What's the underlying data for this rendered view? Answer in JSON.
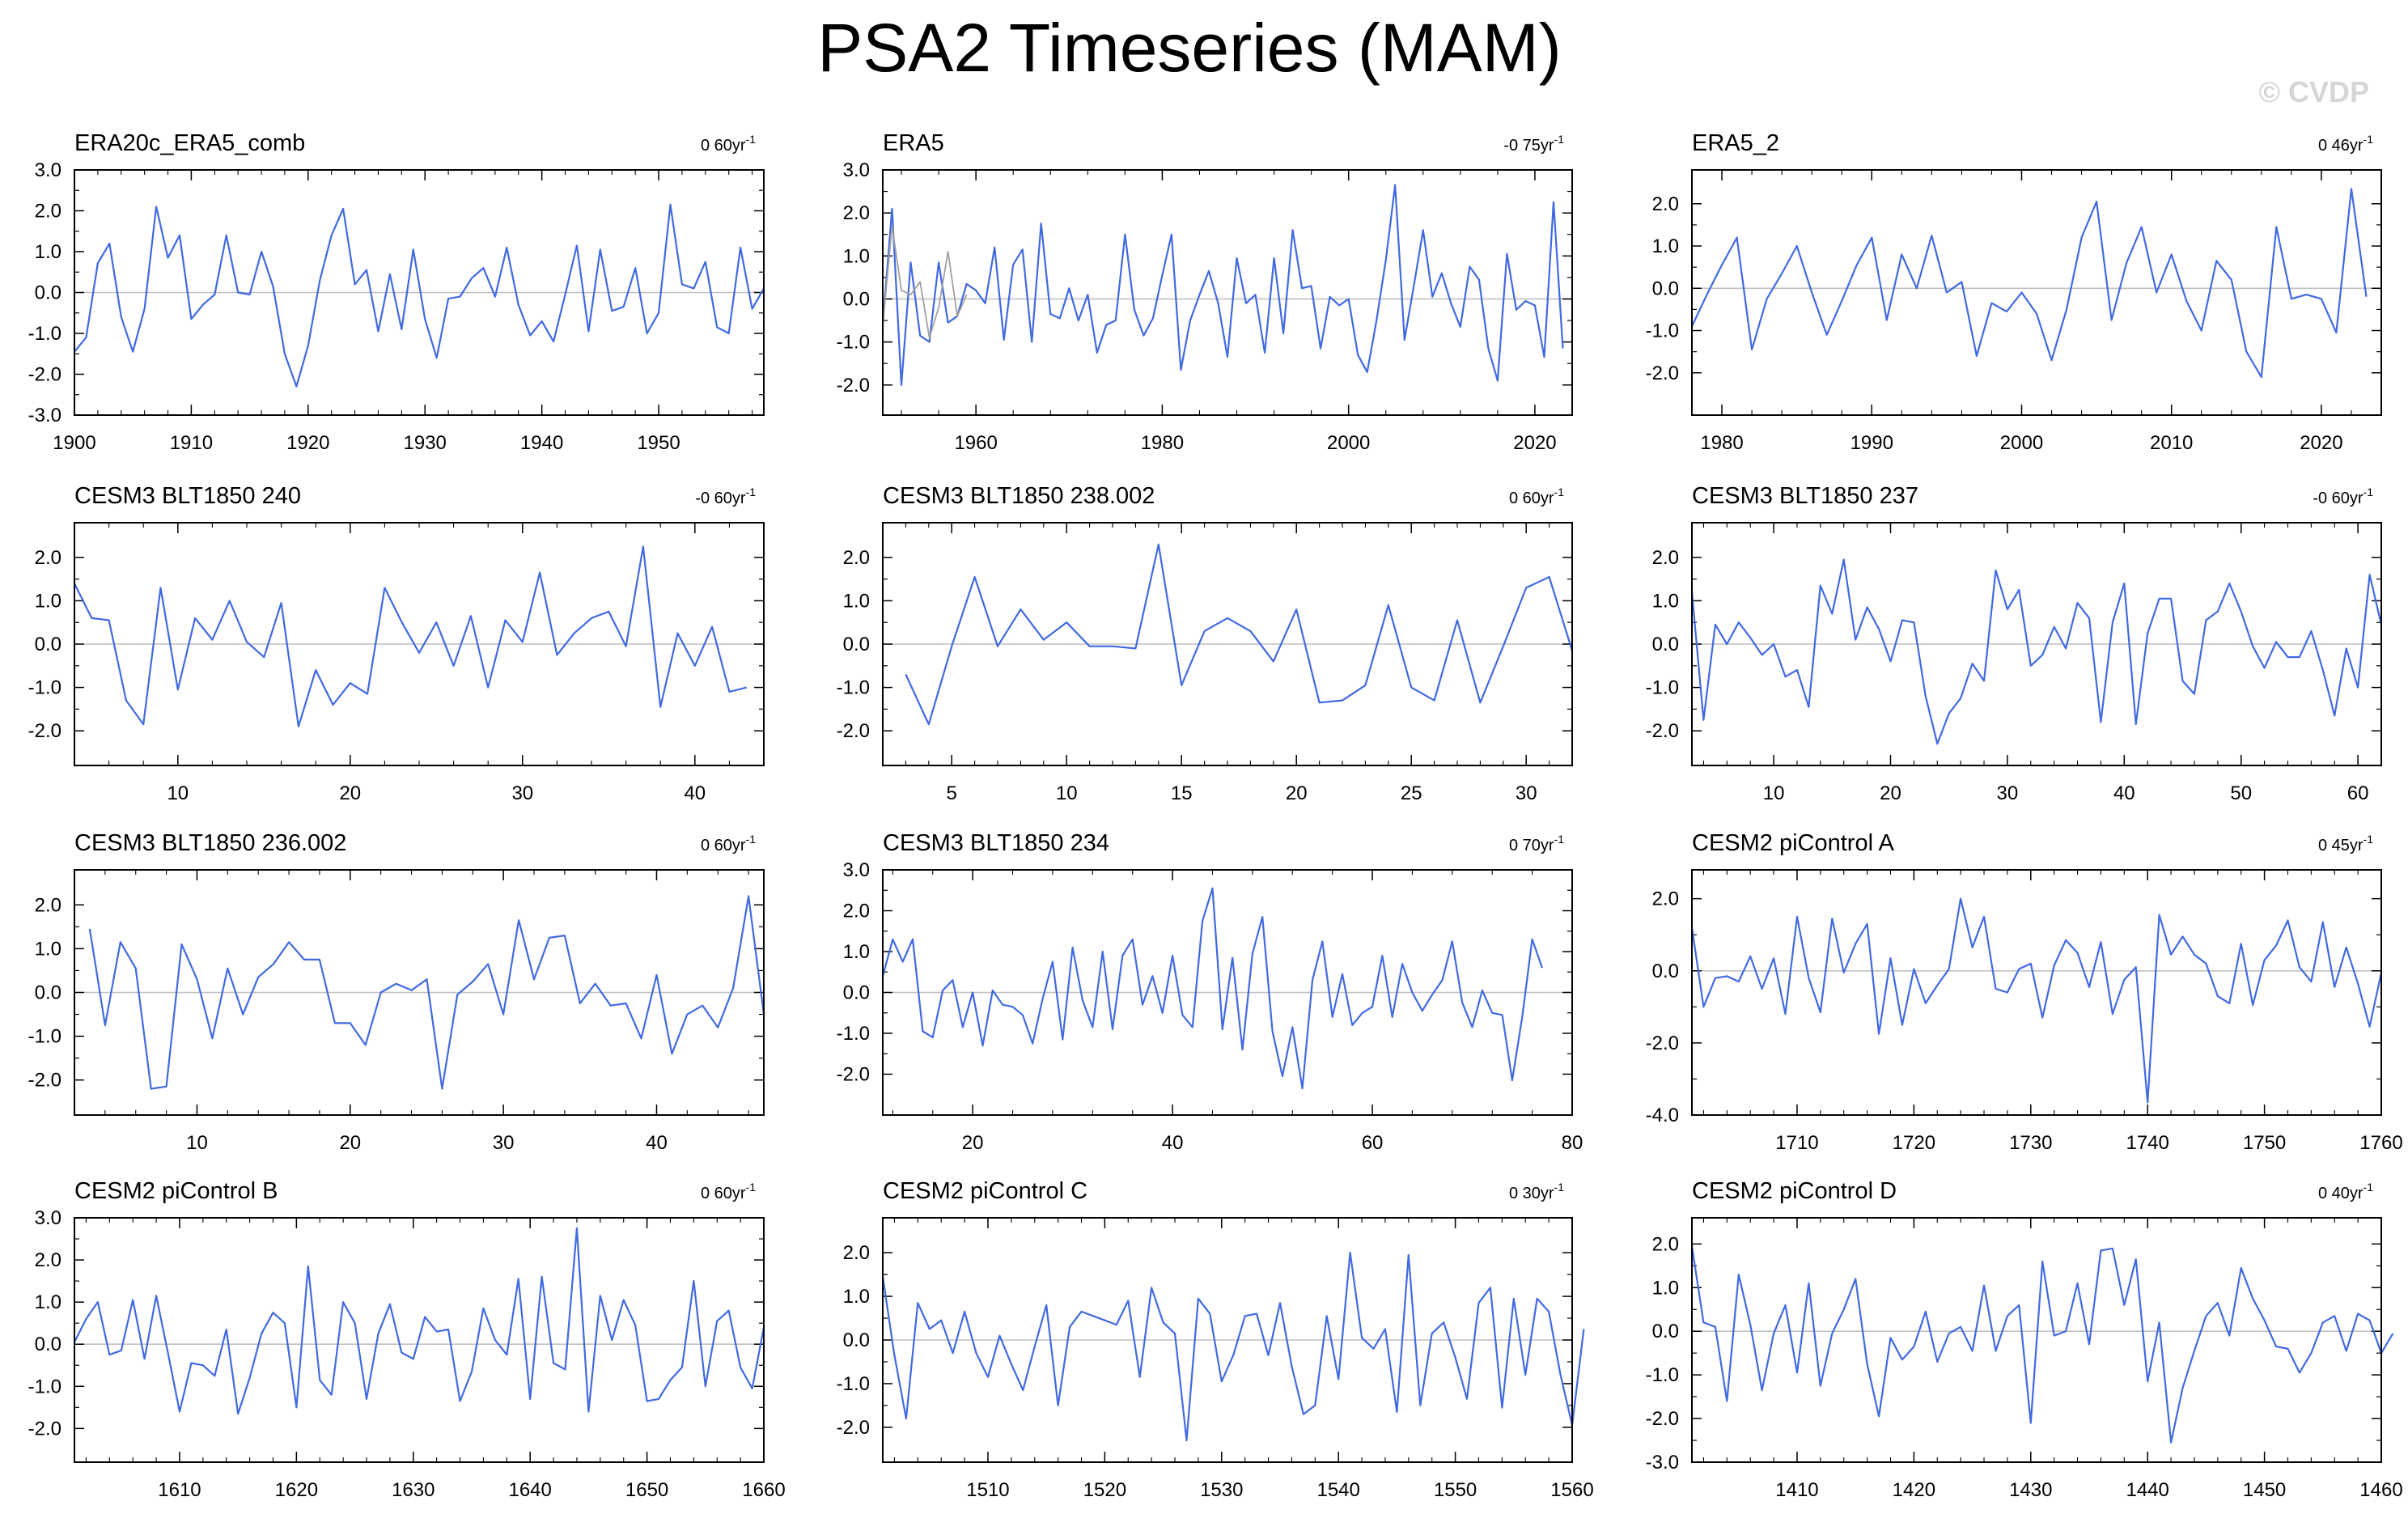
{
  "figure": {
    "title": "PSA2 Timeseries (MAM)",
    "watermark": "© CVDP",
    "line_color": "#4169e1",
    "secondary_color": "#a0a0a0",
    "zero_color": "#c0c0c0"
  },
  "chart_data": [
    {
      "type": "line",
      "title": "ERA20c_ERA5_comb",
      "trend": "0 60yr",
      "trend_exp": "-1",
      "xlim": [
        1900,
        1959
      ],
      "ylim": [
        -3.0,
        3.0
      ],
      "yticks": [
        -3.0,
        -2.0,
        -1.0,
        0.0,
        1.0,
        2.0,
        3.0
      ],
      "xticks": [
        1900,
        1910,
        1920,
        1930,
        1940,
        1950
      ],
      "xminor": 2,
      "x_start": 1900,
      "x_step": 1,
      "series": [
        {
          "values": [
            -1.45,
            -1.1,
            0.72,
            1.2,
            -0.6,
            -1.45,
            -0.4,
            2.1,
            0.85,
            1.4,
            -0.65,
            -0.3,
            -0.05,
            1.4,
            0.0,
            -0.05,
            1.0,
            0.15,
            -1.5,
            -2.3,
            -1.3,
            0.3,
            1.4,
            2.05,
            0.2,
            0.55,
            -0.95,
            0.45,
            -0.9,
            1.05,
            -0.65,
            -1.6,
            -0.15,
            -0.1,
            0.35,
            0.6,
            -0.1,
            1.1,
            -0.3,
            -1.05,
            -0.7,
            -1.2,
            -0.05,
            1.15,
            -0.95,
            1.05,
            -0.45,
            -0.35,
            0.6,
            -1.0,
            -0.5,
            2.15,
            0.2,
            0.1,
            0.75,
            -0.85,
            -1.0,
            1.1,
            -0.4,
            0.1
          ]
        }
      ]
    },
    {
      "type": "line",
      "title": "ERA5",
      "trend": "-0 75yr",
      "trend_exp": "-1",
      "xlim": [
        1950,
        2024
      ],
      "ylim": [
        -2.7,
        3.0
      ],
      "yticks": [
        -2.0,
        -1.0,
        0.0,
        1.0,
        2.0,
        3.0
      ],
      "xticks": [
        1960,
        1980,
        2000,
        2020
      ],
      "xminor": 4,
      "x_start": 1950,
      "x_step": 1,
      "series": [
        {
          "values": [
            -0.6,
            2.1,
            -2.0,
            0.85,
            -0.85,
            -1.0,
            0.85,
            -0.55,
            -0.4,
            0.35,
            0.2,
            -0.1,
            1.2,
            -0.95,
            0.8,
            1.15,
            -1.0,
            1.75,
            -0.35,
            -0.45,
            0.25,
            -0.5,
            0.1,
            -1.25,
            -0.6,
            -0.5,
            1.5,
            -0.25,
            -0.85,
            -0.45,
            0.55,
            1.5,
            -1.65,
            -0.5,
            0.1,
            0.65,
            -0.1,
            -1.35,
            0.95,
            -0.1,
            0.1,
            -1.25,
            0.95,
            -0.8,
            1.6,
            0.25,
            0.3,
            -1.15,
            0.05,
            -0.15,
            0.0,
            -1.3,
            -1.7,
            -0.5,
            0.9,
            2.65,
            -0.95,
            0.3,
            1.6,
            0.05,
            0.6,
            -0.1,
            -0.65,
            0.75,
            0.45,
            -1.15,
            -1.9,
            1.05,
            -0.25,
            -0.05,
            -0.15,
            -1.35,
            2.25,
            -1.15
          ]
        },
        {
          "values": [
            -0.6,
            1.7,
            0.2,
            0.1,
            0.4,
            -0.9,
            -0.2,
            1.1,
            -0.4,
            0.1
          ]
        }
      ]
    },
    {
      "type": "line",
      "title": "ERA5_2",
      "trend": "0 46yr",
      "trend_exp": "-1",
      "xlim": [
        1978,
        2024
      ],
      "ylim": [
        -3.0,
        2.8
      ],
      "yticks": [
        -2.0,
        -1.0,
        0.0,
        1.0,
        2.0
      ],
      "xticks": [
        1980,
        1990,
        2000,
        2010,
        2020
      ],
      "xminor": 2,
      "x_start": 1978,
      "x_step": 1,
      "series": [
        {
          "values": [
            -0.9,
            -0.15,
            0.55,
            1.2,
            -1.45,
            -0.25,
            0.35,
            1.0,
            -0.1,
            -1.1,
            -0.3,
            0.55,
            1.2,
            -0.75,
            0.8,
            0.0,
            1.25,
            -0.1,
            0.15,
            -1.6,
            -0.35,
            -0.55,
            -0.1,
            -0.6,
            -1.7,
            -0.5,
            1.2,
            2.05,
            -0.75,
            0.6,
            1.45,
            -0.1,
            0.8,
            -0.3,
            -1.0,
            0.65,
            0.2,
            -1.5,
            -2.1,
            1.45,
            -0.25,
            -0.15,
            -0.25,
            -1.05,
            2.35,
            -0.2
          ]
        }
      ]
    },
    {
      "type": "line",
      "title": "CESM3 BLT1850 240",
      "trend": "-0 60yr",
      "trend_exp": "-1",
      "xlim": [
        4,
        44
      ],
      "ylim": [
        -2.8,
        2.8
      ],
      "yticks": [
        -2.0,
        -1.0,
        0.0,
        1.0,
        2.0
      ],
      "xticks": [
        10,
        20,
        30,
        40
      ],
      "xminor": 2,
      "x_start": 4,
      "x_step": 1,
      "series": [
        {
          "values": [
            1.4,
            0.6,
            0.55,
            -1.3,
            -1.85,
            1.3,
            -1.05,
            0.6,
            0.1,
            1.0,
            0.05,
            -0.3,
            0.95,
            -1.9,
            -0.6,
            -1.4,
            -0.9,
            -1.15,
            1.3,
            0.5,
            -0.2,
            0.5,
            -0.5,
            0.65,
            -1.0,
            0.55,
            0.05,
            1.65,
            -0.25,
            0.25,
            0.6,
            0.75,
            -0.05,
            2.25,
            -1.45,
            0.25,
            -0.5,
            0.4,
            -1.1,
            -1.0
          ]
        }
      ]
    },
    {
      "type": "line",
      "title": "CESM3 BLT1850 238.002",
      "trend": "0 60yr",
      "trend_exp": "-1",
      "xlim": [
        2,
        32
      ],
      "ylim": [
        -2.8,
        2.8
      ],
      "yticks": [
        -2.0,
        -1.0,
        0.0,
        1.0,
        2.0
      ],
      "xticks": [
        5,
        10,
        15,
        20,
        25,
        30
      ],
      "xminor": 1,
      "x_start": 3,
      "x_step": 1,
      "series": [
        {
          "values": [
            -0.7,
            -1.85,
            -0.05,
            1.55,
            -0.05,
            0.8,
            0.1,
            0.5,
            -0.05,
            -0.05,
            -0.1,
            2.3,
            -0.95,
            0.3,
            0.6,
            0.3,
            -0.4,
            0.8,
            -1.35,
            -1.3,
            -0.95,
            0.9,
            -1.0,
            -1.3,
            0.55,
            -1.35,
            -0.05,
            1.3,
            1.55,
            -0.15
          ]
        }
      ]
    },
    {
      "type": "line",
      "title": "CESM3 BLT1850 237",
      "trend": "-0 60yr",
      "trend_exp": "-1",
      "xlim": [
        3,
        62
      ],
      "ylim": [
        -2.8,
        2.8
      ],
      "yticks": [
        -2.0,
        -1.0,
        0.0,
        1.0,
        2.0
      ],
      "xticks": [
        10,
        20,
        30,
        40,
        50,
        60
      ],
      "xminor": 2,
      "x_start": 3,
      "x_step": 1,
      "series": [
        {
          "values": [
            1.2,
            -1.75,
            0.45,
            0.0,
            0.5,
            0.15,
            -0.25,
            0.0,
            -0.75,
            -0.6,
            -1.45,
            1.35,
            0.7,
            1.95,
            0.1,
            0.85,
            0.35,
            -0.4,
            0.55,
            0.5,
            -1.2,
            -2.3,
            -1.6,
            -1.25,
            -0.45,
            -0.85,
            1.7,
            0.8,
            1.25,
            -0.5,
            -0.25,
            0.4,
            -0.1,
            0.95,
            0.6,
            -1.8,
            0.5,
            1.4,
            -1.85,
            0.25,
            1.05,
            1.05,
            -0.85,
            -1.15,
            0.55,
            0.75,
            1.4,
            0.75,
            -0.05,
            -0.55,
            0.05,
            -0.3,
            -0.3,
            0.3,
            -0.6,
            -1.65,
            -0.1,
            -1.0,
            1.6,
            0.45
          ]
        }
      ]
    },
    {
      "type": "line",
      "title": "CESM3 BLT1850 236.002",
      "trend": "0 60yr",
      "trend_exp": "-1",
      "xlim": [
        2,
        47
      ],
      "ylim": [
        -2.8,
        2.8
      ],
      "yticks": [
        -2.0,
        -1.0,
        0.0,
        1.0,
        2.0
      ],
      "xticks": [
        10,
        20,
        30,
        40
      ],
      "xminor": 2,
      "x_start": 3,
      "x_step": 1,
      "series": [
        {
          "values": [
            1.45,
            -0.75,
            1.15,
            0.55,
            -2.2,
            -2.15,
            1.1,
            0.3,
            -1.05,
            0.55,
            -0.5,
            0.35,
            0.65,
            1.15,
            0.75,
            0.75,
            -0.7,
            -0.7,
            -1.2,
            0.0,
            0.2,
            0.05,
            0.3,
            -2.2,
            -0.05,
            0.25,
            0.65,
            -0.5,
            1.65,
            0.3,
            1.25,
            1.3,
            -0.25,
            0.2,
            -0.3,
            -0.25,
            -1.05,
            0.4,
            -1.4,
            -0.5,
            -0.3,
            -0.8,
            0.1,
            2.2,
            -0.5
          ]
        }
      ]
    },
    {
      "type": "line",
      "title": "CESM3 BLT1850 234",
      "trend": "0 70yr",
      "trend_exp": "-1",
      "xlim": [
        11,
        80
      ],
      "ylim": [
        -3.0,
        3.0
      ],
      "yticks": [
        -2.0,
        -1.0,
        0.0,
        1.0,
        2.0,
        3.0
      ],
      "xticks": [
        20,
        40,
        60,
        80
      ],
      "xminor": 4,
      "x_start": 11,
      "x_step": 1,
      "series": [
        {
          "values": [
            0.4,
            1.3,
            0.75,
            1.3,
            -0.95,
            -1.1,
            0.05,
            0.3,
            -0.85,
            0.0,
            -1.3,
            0.05,
            -0.3,
            -0.35,
            -0.55,
            -1.25,
            -0.15,
            0.75,
            -1.15,
            1.1,
            -0.2,
            -0.85,
            1.0,
            -0.9,
            0.9,
            1.3,
            -0.3,
            0.4,
            -0.5,
            0.9,
            -0.55,
            -0.85,
            1.75,
            2.55,
            -0.9,
            0.85,
            -1.4,
            0.95,
            1.85,
            -0.95,
            -2.05,
            -0.85,
            -2.35,
            0.3,
            1.25,
            -0.6,
            0.45,
            -0.8,
            -0.5,
            -0.35,
            0.9,
            -0.6,
            0.7,
            0.0,
            -0.45,
            -0.05,
            0.3,
            1.25,
            -0.25,
            -0.85,
            0.05,
            -0.5,
            -0.55,
            -2.15,
            -0.6,
            1.3,
            0.6
          ]
        }
      ]
    },
    {
      "type": "line",
      "title": "CESM2 piControl A",
      "trend": "0 45yr",
      "trend_exp": "-1",
      "xlim": [
        1701,
        1760
      ],
      "ylim": [
        -4.0,
        2.8
      ],
      "yticks": [
        -4.0,
        -2.0,
        0.0,
        2.0
      ],
      "xticks": [
        1710,
        1720,
        1730,
        1740,
        1750,
        1760
      ],
      "xminor": 2,
      "x_start": 1701,
      "x_step": 1,
      "series": [
        {
          "values": [
            1.2,
            -1.0,
            -0.2,
            -0.15,
            -0.3,
            0.4,
            -0.5,
            0.35,
            -1.2,
            1.5,
            -0.2,
            -1.15,
            1.45,
            -0.05,
            0.75,
            1.3,
            -1.75,
            0.35,
            -1.5,
            0.05,
            -0.9,
            -0.4,
            0.05,
            2.0,
            0.65,
            1.5,
            -0.5,
            -0.6,
            0.05,
            0.2,
            -1.3,
            0.15,
            0.85,
            0.5,
            -0.45,
            0.8,
            -1.2,
            -0.25,
            0.1,
            -3.65,
            1.55,
            0.45,
            0.95,
            0.45,
            0.2,
            -0.7,
            -0.9,
            0.75,
            -0.95,
            0.3,
            0.7,
            1.4,
            0.1,
            -0.3,
            1.35,
            -0.45,
            0.65,
            -0.35,
            -1.55,
            -0.05
          ]
        }
      ]
    },
    {
      "type": "line",
      "title": "CESM2 piControl B",
      "trend": "0 60yr",
      "trend_exp": "-1",
      "xlim": [
        1601,
        1660
      ],
      "ylim": [
        -2.8,
        3.0
      ],
      "yticks": [
        -2.0,
        -1.0,
        0.0,
        1.0,
        2.0,
        3.0
      ],
      "xticks": [
        1610,
        1620,
        1630,
        1640,
        1650,
        1660
      ],
      "xminor": 2,
      "x_start": 1601,
      "x_step": 1,
      "series": [
        {
          "values": [
            0.05,
            0.6,
            1.0,
            -0.25,
            -0.15,
            1.05,
            -0.35,
            1.15,
            -0.2,
            -1.6,
            -0.45,
            -0.5,
            -0.75,
            0.35,
            -1.65,
            -0.8,
            0.25,
            0.75,
            0.5,
            -1.5,
            1.85,
            -0.85,
            -1.2,
            1.0,
            0.5,
            -1.3,
            0.25,
            0.95,
            -0.2,
            -0.35,
            0.65,
            0.3,
            0.35,
            -1.35,
            -0.65,
            0.85,
            0.1,
            -0.25,
            1.55,
            -1.3,
            1.6,
            -0.45,
            -0.6,
            2.75,
            -1.6,
            1.15,
            0.1,
            1.05,
            0.45,
            -1.35,
            -1.3,
            -0.85,
            -0.55,
            1.5,
            -1.0,
            0.55,
            0.8,
            -0.55,
            -1.05,
            0.4
          ]
        }
      ]
    },
    {
      "type": "line",
      "title": "CESM2 piControl C",
      "trend": "0 30yr",
      "trend_exp": "-1",
      "xlim": [
        1501,
        1560
      ],
      "ylim": [
        -2.8,
        2.8
      ],
      "yticks": [
        -2.0,
        -1.0,
        0.0,
        1.0,
        2.0
      ],
      "xticks": [
        1510,
        1520,
        1530,
        1540,
        1550,
        1560
      ],
      "xminor": 2,
      "x_start": 1501,
      "x_step": 1,
      "series": [
        {
          "values": [
            1.45,
            -0.35,
            -1.8,
            0.85,
            0.25,
            0.45,
            -0.3,
            0.65,
            -0.3,
            -0.85,
            0.1,
            -0.55,
            -1.15,
            -0.15,
            0.8,
            -1.5,
            0.3,
            0.65,
            0.55,
            0.45,
            0.35,
            0.9,
            -0.85,
            1.2,
            0.4,
            0.15,
            -2.3,
            0.95,
            0.6,
            -0.95,
            -0.35,
            0.55,
            0.6,
            -0.35,
            0.85,
            -0.6,
            -1.7,
            -1.5,
            0.55,
            -0.9,
            2.0,
            0.05,
            -0.2,
            0.25,
            -1.65,
            1.95,
            -1.5,
            0.15,
            0.4,
            -0.4,
            -1.35,
            0.85,
            1.2,
            -1.55,
            0.95,
            -0.8,
            0.95,
            0.65,
            -0.8,
            -1.95,
            0.25
          ]
        }
      ]
    },
    {
      "type": "line",
      "title": "CESM2 piControl D",
      "trend": "0 40yr",
      "trend_exp": "-1",
      "xlim": [
        1401,
        1460
      ],
      "ylim": [
        -3.0,
        2.6
      ],
      "yticks": [
        -3.0,
        -2.0,
        -1.0,
        0.0,
        1.0,
        2.0
      ],
      "xticks": [
        1410,
        1420,
        1430,
        1440,
        1450,
        1460
      ],
      "xminor": 2,
      "x_start": 1401,
      "x_step": 1,
      "series": [
        {
          "values": [
            1.95,
            0.2,
            0.1,
            -1.6,
            1.3,
            0.15,
            -1.35,
            -0.05,
            0.6,
            -0.95,
            1.1,
            -1.25,
            -0.05,
            0.5,
            1.2,
            -0.75,
            -1.95,
            -0.15,
            -0.65,
            -0.35,
            0.45,
            -0.7,
            -0.05,
            0.1,
            -0.45,
            1.05,
            -0.45,
            0.35,
            0.6,
            -2.1,
            1.6,
            -0.1,
            0.0,
            1.1,
            -0.3,
            1.85,
            1.9,
            0.6,
            1.65,
            -1.15,
            0.2,
            -2.55,
            -1.3,
            -0.45,
            0.35,
            0.65,
            -0.1,
            1.45,
            0.75,
            0.25,
            -0.35,
            -0.4,
            -0.95,
            -0.5,
            0.2,
            0.35,
            -0.45,
            0.4,
            0.25,
            -0.5,
            -0.05
          ]
        }
      ]
    }
  ]
}
